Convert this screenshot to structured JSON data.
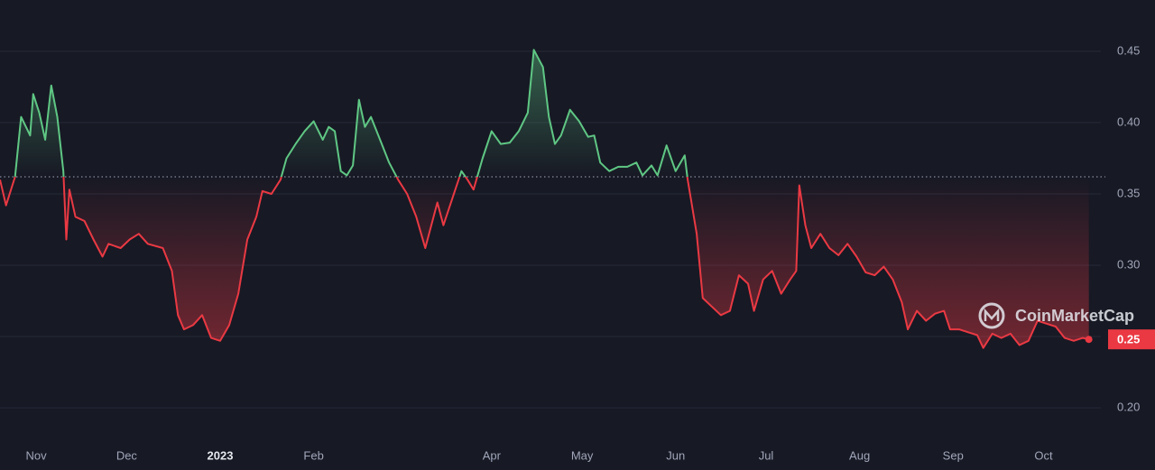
{
  "chart_data": {
    "type": "line",
    "x": [
      0,
      2,
      5,
      7,
      10,
      11,
      13,
      15,
      17,
      19,
      21,
      22,
      23,
      25,
      28,
      31,
      34,
      36,
      40,
      43,
      46,
      49,
      54,
      57,
      59,
      61,
      64,
      67,
      70,
      73,
      76,
      79,
      82,
      85,
      87,
      90,
      93,
      95,
      98,
      101,
      104,
      107,
      109,
      111,
      113,
      115,
      117,
      119,
      121,
      123,
      126,
      129,
      132,
      135,
      138,
      141,
      143,
      145,
      147,
      150,
      153,
      155,
      157,
      160,
      163,
      166,
      169,
      172,
      175,
      177,
      180,
      182,
      184,
      186,
      189,
      192,
      195,
      197,
      199,
      202,
      205,
      208,
      211,
      213,
      216,
      218,
      221,
      224,
      227,
      228,
      231,
      233,
      236,
      239,
      242,
      245,
      248,
      250,
      253,
      256,
      259,
      262,
      264,
      265,
      267,
      269,
      272,
      275,
      278,
      281,
      284,
      287,
      290,
      293,
      296,
      299,
      301,
      304,
      307,
      310,
      313,
      315,
      318,
      321,
      324,
      326,
      329,
      332,
      335,
      338,
      341,
      344,
      347,
      350,
      353,
      356,
      359,
      361
    ],
    "series": [
      {
        "values": [
          0.36,
          0.342,
          0.362,
          0.404,
          0.391,
          0.42,
          0.407,
          0.388,
          0.426,
          0.404,
          0.366,
          0.318,
          0.353,
          0.334,
          0.331,
          0.318,
          0.306,
          0.315,
          0.312,
          0.318,
          0.322,
          0.315,
          0.312,
          0.296,
          0.265,
          0.255,
          0.258,
          0.265,
          0.249,
          0.247,
          0.258,
          0.28,
          0.318,
          0.334,
          0.352,
          0.35,
          0.36,
          0.375,
          0.385,
          0.394,
          0.401,
          0.388,
          0.397,
          0.394,
          0.366,
          0.363,
          0.37,
          0.416,
          0.397,
          0.404,
          0.388,
          0.372,
          0.36,
          0.35,
          0.334,
          0.312,
          0.328,
          0.344,
          0.328,
          0.347,
          0.366,
          0.36,
          0.353,
          0.375,
          0.394,
          0.385,
          0.386,
          0.394,
          0.407,
          0.451,
          0.439,
          0.404,
          0.385,
          0.391,
          0.409,
          0.401,
          0.39,
          0.391,
          0.372,
          0.366,
          0.369,
          0.369,
          0.372,
          0.363,
          0.37,
          0.363,
          0.384,
          0.366,
          0.377,
          0.36,
          0.322,
          0.277,
          0.271,
          0.265,
          0.268,
          0.293,
          0.287,
          0.268,
          0.29,
          0.296,
          0.28,
          0.29,
          0.296,
          0.356,
          0.328,
          0.312,
          0.322,
          0.312,
          0.307,
          0.315,
          0.306,
          0.295,
          0.293,
          0.299,
          0.29,
          0.274,
          0.255,
          0.268,
          0.261,
          0.266,
          0.268,
          0.255,
          0.255,
          0.253,
          0.251,
          0.242,
          0.252,
          0.249,
          0.252,
          0.244,
          0.247,
          0.261,
          0.259,
          0.257,
          0.249,
          0.247,
          0.249,
          0.248
        ],
        "value_labels": {
          "137": "0.25"
        }
      }
    ],
    "up_color": "#5fc784",
    "down_color": "#ea3943",
    "baseline": 0.362,
    "xlim": [
      0,
      362
    ],
    "xticks": [
      {
        "value": 12,
        "label": "Nov"
      },
      {
        "value": 42,
        "label": "Dec"
      },
      {
        "value": 73,
        "label": "2023"
      },
      {
        "value": 104,
        "label": "Feb"
      },
      {
        "value": 163,
        "label": "Apr"
      },
      {
        "value": 193,
        "label": "May"
      },
      {
        "value": 224,
        "label": "Jun"
      },
      {
        "value": 254,
        "label": "Jul"
      },
      {
        "value": 285,
        "label": "Aug"
      },
      {
        "value": 316,
        "label": "Sep"
      },
      {
        "value": 346,
        "label": "Oct"
      }
    ],
    "ylim": [
      0.176,
      0.486
    ],
    "yticks": [
      {
        "value": 0.2,
        "label": "0.20"
      },
      0.25,
      {
        "value": 0.3,
        "label": "0.30"
      },
      0.35,
      {
        "value": 0.4,
        "label": "0.40"
      },
      0.45
    ],
    "grid": true,
    "watermark": "CoinMarketCap"
  }
}
